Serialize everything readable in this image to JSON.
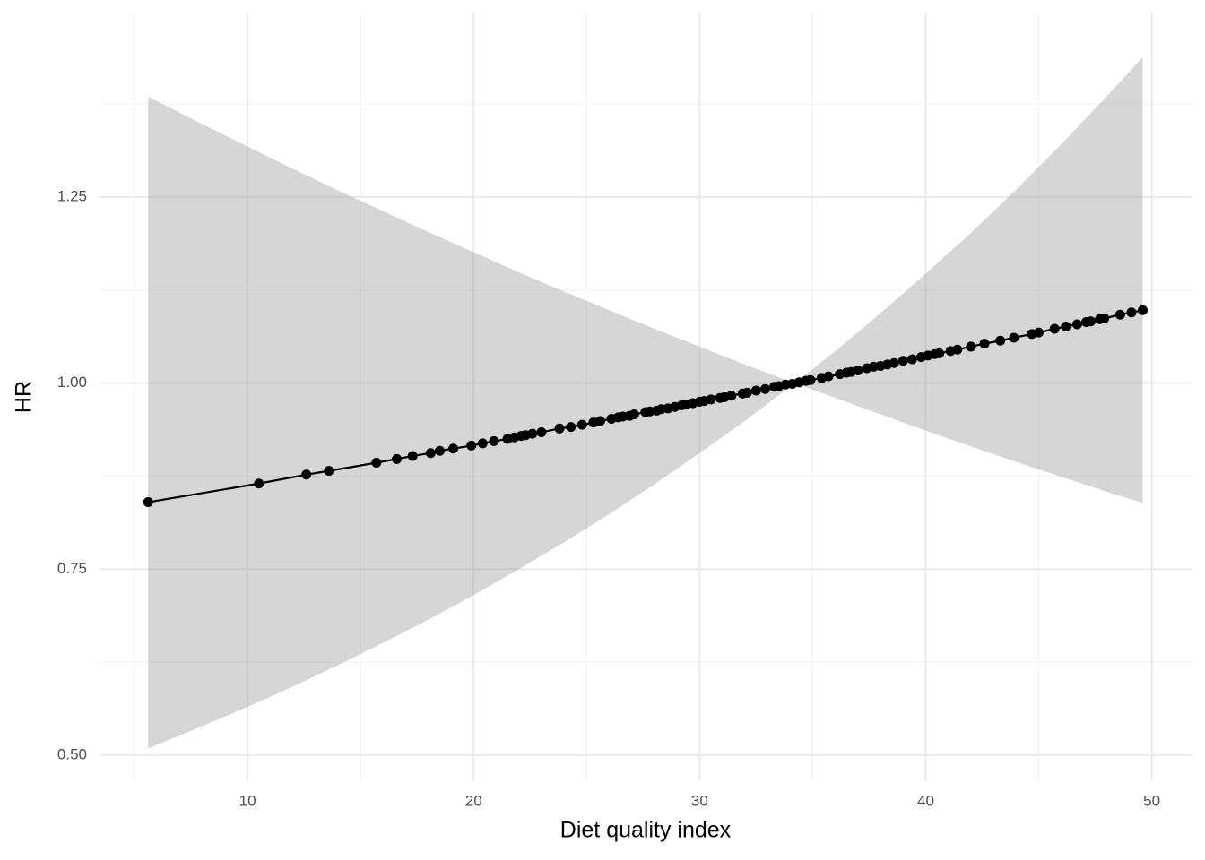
{
  "chart_data": {
    "type": "line",
    "x_label": "Diet quality index",
    "y_label": "HR",
    "xlim": [
      3.45,
      51.8
    ],
    "ylim": [
      0.465,
      1.498
    ],
    "xticks": [
      10,
      20,
      30,
      40,
      50
    ],
    "yticks": [
      {
        "value": 0.5,
        "label": "0.50"
      },
      0.75,
      {
        "value": 1,
        "label": "1.00"
      },
      1.25
    ],
    "x_minor_grid": [
      5,
      15,
      25,
      35,
      45
    ],
    "y_minor_grid": [
      0.625,
      0.875,
      1.125,
      1.375
    ],
    "grid": true,
    "band": {
      "color": "#999999",
      "x": [
        5.6,
        8,
        10,
        12,
        14,
        16,
        18,
        20,
        22,
        24,
        26,
        28,
        30,
        32,
        34.2,
        36,
        38,
        40,
        42,
        44,
        46,
        48,
        49.6
      ],
      "lower": [
        0.509,
        0.539,
        0.565,
        0.592,
        0.621,
        0.651,
        0.682,
        0.715,
        0.75,
        0.786,
        0.824,
        0.864,
        0.906,
        0.949,
        1,
        0.98,
        0.958,
        0.936,
        0.915,
        0.894,
        0.874,
        0.854,
        0.839
      ],
      "upper": [
        1.385,
        1.348,
        1.318,
        1.288,
        1.259,
        1.231,
        1.203,
        1.176,
        1.149,
        1.123,
        1.098,
        1.073,
        1.049,
        1.025,
        1,
        1.043,
        1.094,
        1.147,
        1.202,
        1.26,
        1.321,
        1.385,
        1.438
      ]
    },
    "series": [
      {
        "color": "#000000",
        "x": [
          5.6,
          10.5,
          12.6,
          13.6,
          15.7,
          16.6,
          17.3,
          18.1,
          18.5,
          19.1,
          19.9,
          20.4,
          20.9,
          21.5,
          21.8,
          22.1,
          22.3,
          22.6,
          23.0,
          23.8,
          24.3,
          24.8,
          25.3,
          25.6,
          26.1,
          26.4,
          26.6,
          26.9,
          27.1,
          27.6,
          27.8,
          28.1,
          28.3,
          28.6,
          28.9,
          29.2,
          29.4,
          29.7,
          30.0,
          30.2,
          30.5,
          30.9,
          31.1,
          31.4,
          31.9,
          32.1,
          32.5,
          32.9,
          33.3,
          33.5,
          33.8,
          34.1,
          34.4,
          34.7,
          34.9,
          35.4,
          35.7,
          36.2,
          36.5,
          36.7,
          37.0,
          37.4,
          37.7,
          38.0,
          38.3,
          38.6,
          39.0,
          39.4,
          39.8,
          40.1,
          40.4,
          40.6,
          41.1,
          41.4,
          42.0,
          42.6,
          43.3,
          43.9,
          44.7,
          45.0,
          45.7,
          46.2,
          46.7,
          47.1,
          47.3,
          47.7,
          47.9,
          48.6,
          49.1,
          49.6
        ],
        "values": [
          0.84,
          0.865,
          0.877,
          0.882,
          0.893,
          0.898,
          0.902,
          0.906,
          0.909,
          0.912,
          0.916,
          0.919,
          0.922,
          0.925,
          0.927,
          0.929,
          0.93,
          0.932,
          0.934,
          0.939,
          0.941,
          0.944,
          0.947,
          0.949,
          0.952,
          0.954,
          0.955,
          0.956,
          0.958,
          0.961,
          0.962,
          0.963,
          0.965,
          0.966,
          0.968,
          0.97,
          0.971,
          0.973,
          0.975,
          0.976,
          0.978,
          0.98,
          0.981,
          0.983,
          0.986,
          0.987,
          0.99,
          0.992,
          0.995,
          0.996,
          0.998,
          0.999,
          1.001,
          1.003,
          1.004,
          1.007,
          1.009,
          1.012,
          1.014,
          1.015,
          1.017,
          1.02,
          1.022,
          1.023,
          1.025,
          1.027,
          1.03,
          1.032,
          1.035,
          1.037,
          1.039,
          1.04,
          1.043,
          1.045,
          1.049,
          1.053,
          1.057,
          1.061,
          1.066,
          1.068,
          1.073,
          1.076,
          1.079,
          1.082,
          1.083,
          1.086,
          1.087,
          1.092,
          1.095,
          1.098
        ]
      }
    ]
  }
}
